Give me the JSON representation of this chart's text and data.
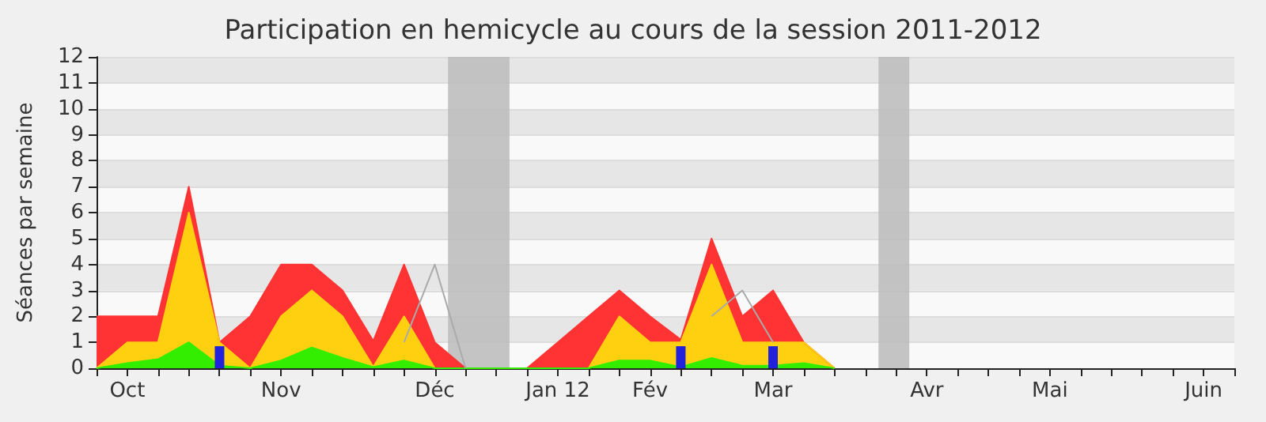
{
  "chart_data": {
    "type": "area",
    "title": "Participation en hemicycle au cours de la session 2011-2012",
    "ylabel": "Séances par semaine",
    "x": [
      "2011-10-03",
      "2011-10-10",
      "2011-10-17",
      "2011-10-24",
      "2011-10-31",
      "2011-11-07",
      "2011-11-14",
      "2011-11-21",
      "2011-11-28",
      "2011-12-05",
      "2011-12-12",
      "2011-12-19",
      "2011-12-26",
      "2012-01-02",
      "2012-01-09",
      "2012-01-16",
      "2012-01-23",
      "2012-01-30",
      "2012-02-06",
      "2012-02-13",
      "2012-02-20",
      "2012-02-27",
      "2012-03-05",
      "2012-03-12",
      "2012-03-19"
    ],
    "stacked": true,
    "marker": "none",
    "grid": "y",
    "legend": false,
    "xlim": [
      "2011-10-03",
      "2012-06-18"
    ],
    "ylim": [
      0,
      12
    ],
    "yticks": [
      0,
      1,
      2,
      3,
      4,
      5,
      6,
      7,
      8,
      9,
      10,
      11,
      12
    ],
    "xticks": [
      {
        "value": "2011-10-03",
        "label": null
      },
      {
        "value": "2011-10-10",
        "label": "Oct"
      },
      {
        "value": "2011-10-17",
        "label": null
      },
      {
        "value": "2011-10-24",
        "label": null
      },
      {
        "value": "2011-10-31",
        "label": null
      },
      {
        "value": "2011-11-07",
        "label": null
      },
      {
        "value": "2011-11-14",
        "label": "Nov"
      },
      {
        "value": "2011-11-21",
        "label": null
      },
      {
        "value": "2011-11-28",
        "label": null
      },
      {
        "value": "2011-12-05",
        "label": null
      },
      {
        "value": "2011-12-12",
        "label": null
      },
      {
        "value": "2011-12-19",
        "label": "Déc"
      },
      {
        "value": "2011-12-26",
        "label": null
      },
      {
        "value": "2012-01-02",
        "label": null
      },
      {
        "value": "2012-01-09",
        "label": null
      },
      {
        "value": "2012-01-16",
        "label": "Jan 12"
      },
      {
        "value": "2012-01-23",
        "label": null
      },
      {
        "value": "2012-01-30",
        "label": null
      },
      {
        "value": "2012-02-06",
        "label": "Fév"
      },
      {
        "value": "2012-02-13",
        "label": null
      },
      {
        "value": "2012-02-20",
        "label": null
      },
      {
        "value": "2012-02-27",
        "label": null
      },
      {
        "value": "2012-03-05",
        "label": "Mar"
      },
      {
        "value": "2012-03-12",
        "label": null
      },
      {
        "value": "2012-03-19",
        "label": null
      },
      {
        "value": "2012-03-26",
        "label": null
      },
      {
        "value": "2012-04-02",
        "label": null
      },
      {
        "value": "2012-04-09",
        "label": "Avr"
      },
      {
        "value": "2012-04-16",
        "label": null
      },
      {
        "value": "2012-04-23",
        "label": null
      },
      {
        "value": "2012-04-30",
        "label": null
      },
      {
        "value": "2012-05-07",
        "label": "Mai"
      },
      {
        "value": "2012-05-14",
        "label": null
      },
      {
        "value": "2012-05-21",
        "label": null
      },
      {
        "value": "2012-05-28",
        "label": null
      },
      {
        "value": "2012-06-04",
        "label": null
      },
      {
        "value": "2012-06-11",
        "label": "Juin"
      },
      {
        "value": "2012-06-18",
        "label": null
      }
    ],
    "series": [
      {
        "color": "#33ee00",
        "values": [
          0,
          0.2,
          0.35,
          1,
          0.1,
          0,
          0.3,
          0.8,
          0.4,
          0.05,
          0.3,
          0,
          0,
          0,
          0,
          0,
          0,
          0.3,
          0.3,
          0.05,
          0.4,
          0.1,
          0.1,
          0.2,
          0
        ]
      },
      {
        "color": "#ffd010",
        "values": [
          0,
          0.8,
          0.65,
          5,
          0.9,
          0,
          1.7,
          2.2,
          1.6,
          0,
          1.7,
          0,
          0,
          0,
          0,
          0,
          0,
          1.7,
          0.7,
          0.95,
          3.6,
          0.9,
          0.9,
          0.8,
          0
        ]
      },
      {
        "color": "#ff3333",
        "values": [
          2,
          1,
          1,
          1,
          0,
          2,
          2,
          1,
          1,
          1,
          2,
          1,
          0,
          0,
          0,
          1,
          2,
          1,
          1,
          0.1,
          1,
          1,
          2,
          0,
          0
        ]
      },
      {
        "type": "line",
        "color": "#aaaaaa",
        "values": [
          null,
          null,
          null,
          null,
          null,
          null,
          null,
          null,
          null,
          null,
          1,
          4,
          0,
          null,
          null,
          null,
          null,
          null,
          null,
          null,
          2,
          3,
          1,
          null,
          null
        ]
      },
      {
        "type": "bar",
        "color": "#2222dd",
        "values": [
          null,
          null,
          null,
          null,
          0.85,
          null,
          null,
          null,
          null,
          null,
          null,
          null,
          null,
          null,
          null,
          null,
          null,
          null,
          null,
          0.85,
          null,
          null,
          0.85,
          null,
          null
        ]
      }
    ],
    "bands": [
      {
        "axis": "x",
        "from": "2011-12-22",
        "to": "2012-01-05",
        "color": "#bbbbbb"
      },
      {
        "axis": "x",
        "from": "2012-03-29",
        "to": "2012-04-05",
        "color": "#bbbbbb"
      }
    ]
  }
}
